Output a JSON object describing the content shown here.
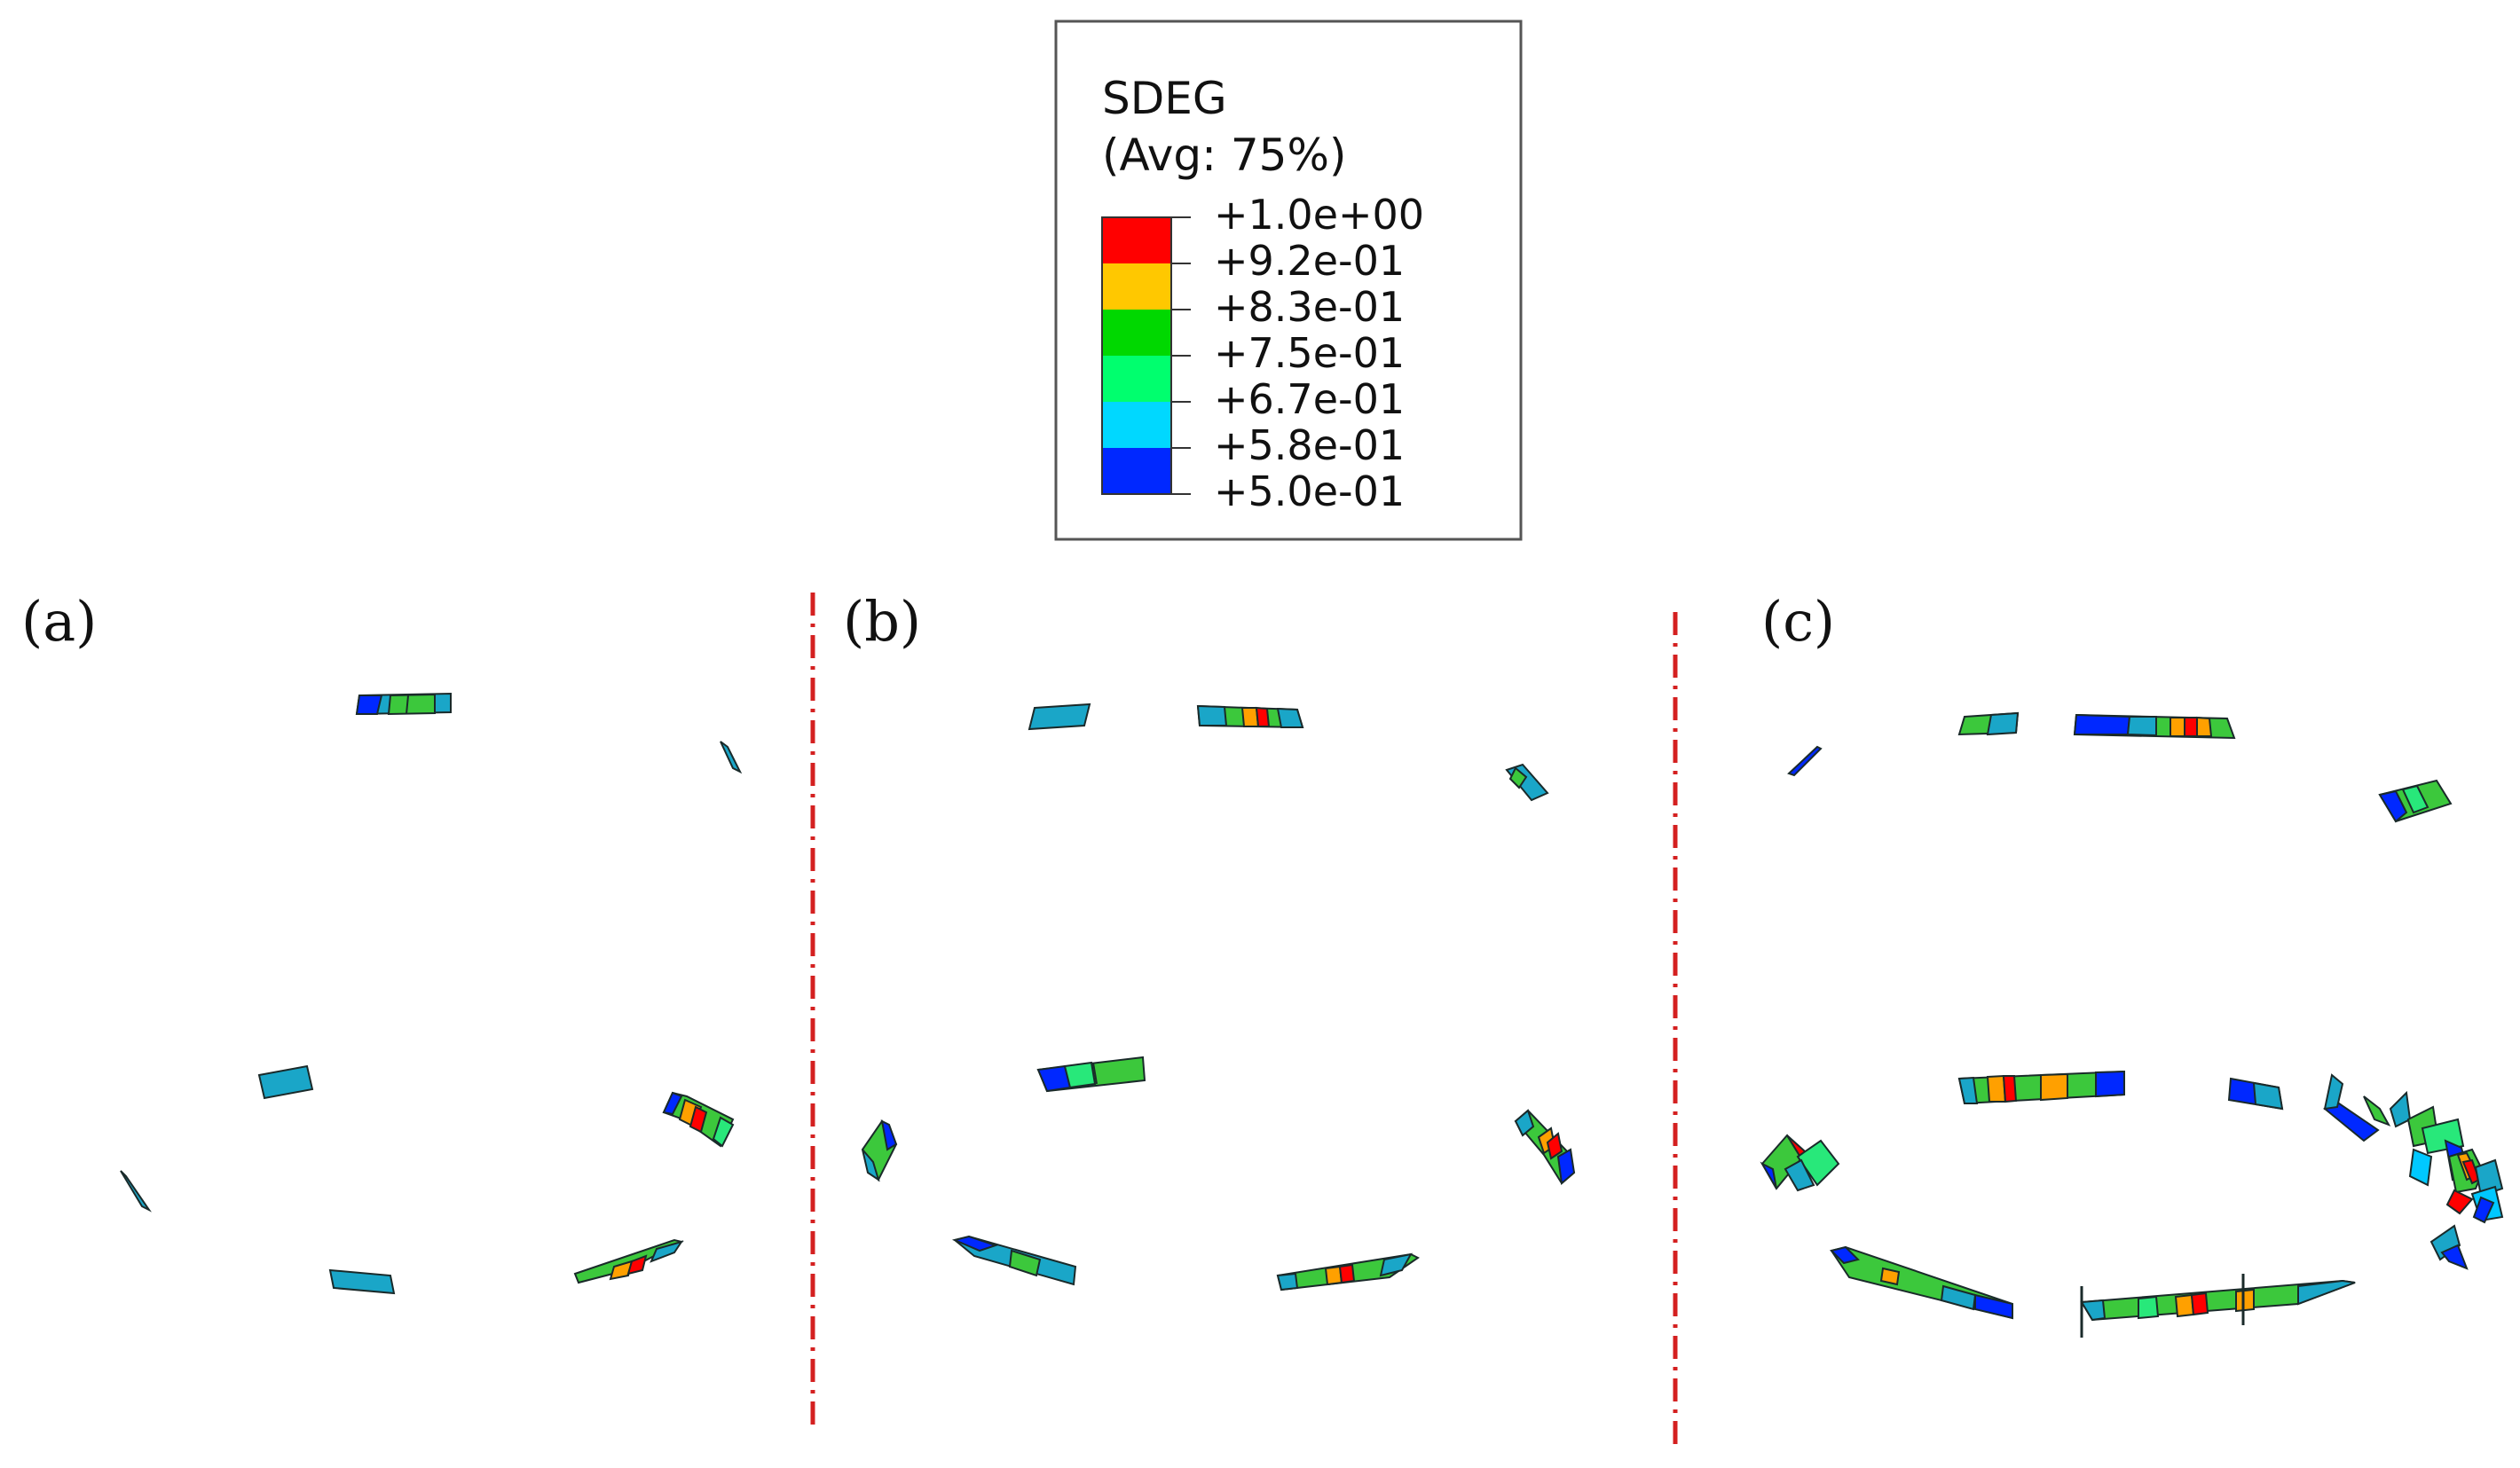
{
  "legend": {
    "title": "SDEG",
    "subtitle": "(Avg: 75%)",
    "levels": [
      "+1.0e+00",
      "+9.2e-01",
      "+8.3e-01",
      "+7.5e-01",
      "+6.7e-01",
      "+5.8e-01",
      "+5.0e-01"
    ],
    "bands": [
      {
        "color": "#ff0000",
        "name": "red-band"
      },
      {
        "color": "#ffc800",
        "name": "orange-band"
      },
      {
        "color": "#00d800",
        "name": "green-band"
      },
      {
        "color": "#00ff6e",
        "name": "spring-green-band"
      },
      {
        "color": "#00d8ff",
        "name": "cyan-band"
      },
      {
        "color": "#0028ff",
        "name": "blue-band"
      }
    ]
  },
  "panels": [
    {
      "id": "a",
      "label": "(a)"
    },
    {
      "id": "b",
      "label": "(b)"
    },
    {
      "id": "c",
      "label": "(c)"
    }
  ],
  "colors": {
    "separator": "#d42020",
    "outline": "#1a2a2a",
    "blue": "#0028ff",
    "teal": "#1aa6c8",
    "cyan": "#00c8ff",
    "green": "#3cc83c",
    "lightgreen": "#28e87a",
    "orange": "#ffa000",
    "red": "#ff0000"
  }
}
